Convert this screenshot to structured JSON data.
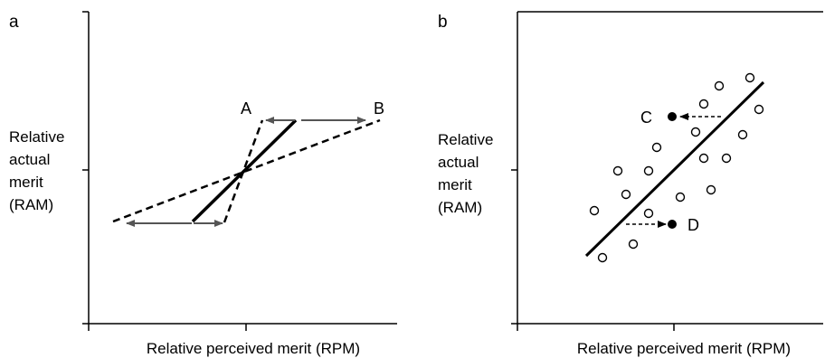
{
  "panels": [
    {
      "letter": "a",
      "ylabel_lines": [
        "Relative",
        "actual",
        "merit",
        "(RAM)"
      ],
      "xlabel": "Relative perceived merit (RPM)",
      "point_labels": [
        "A",
        "B"
      ]
    },
    {
      "letter": "b",
      "ylabel_lines": [
        "Relative",
        "actual",
        "merit",
        "(RAM)"
      ],
      "xlabel": "Relative perceived merit (RPM)",
      "point_labels": [
        "C",
        "D"
      ]
    }
  ],
  "colors": {
    "ink": "#000000",
    "arrow_gray": "#555555"
  }
}
